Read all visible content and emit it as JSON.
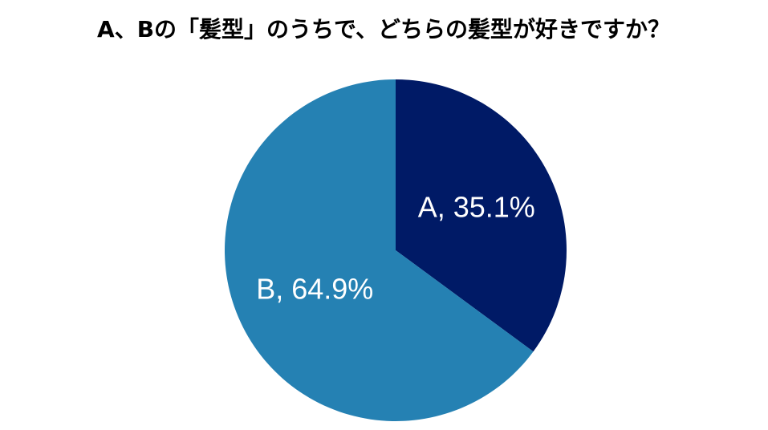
{
  "chart_data": {
    "type": "pie",
    "title": "A、Bの「髪型」のうちで、どちらの髪型が好きですか？",
    "categories": [
      "A",
      "B"
    ],
    "values": [
      35.1,
      64.9
    ],
    "value_labels": [
      "A, 35.1%",
      "B, 64.9%"
    ],
    "colors": [
      "#001a66",
      "#2581b3"
    ]
  }
}
